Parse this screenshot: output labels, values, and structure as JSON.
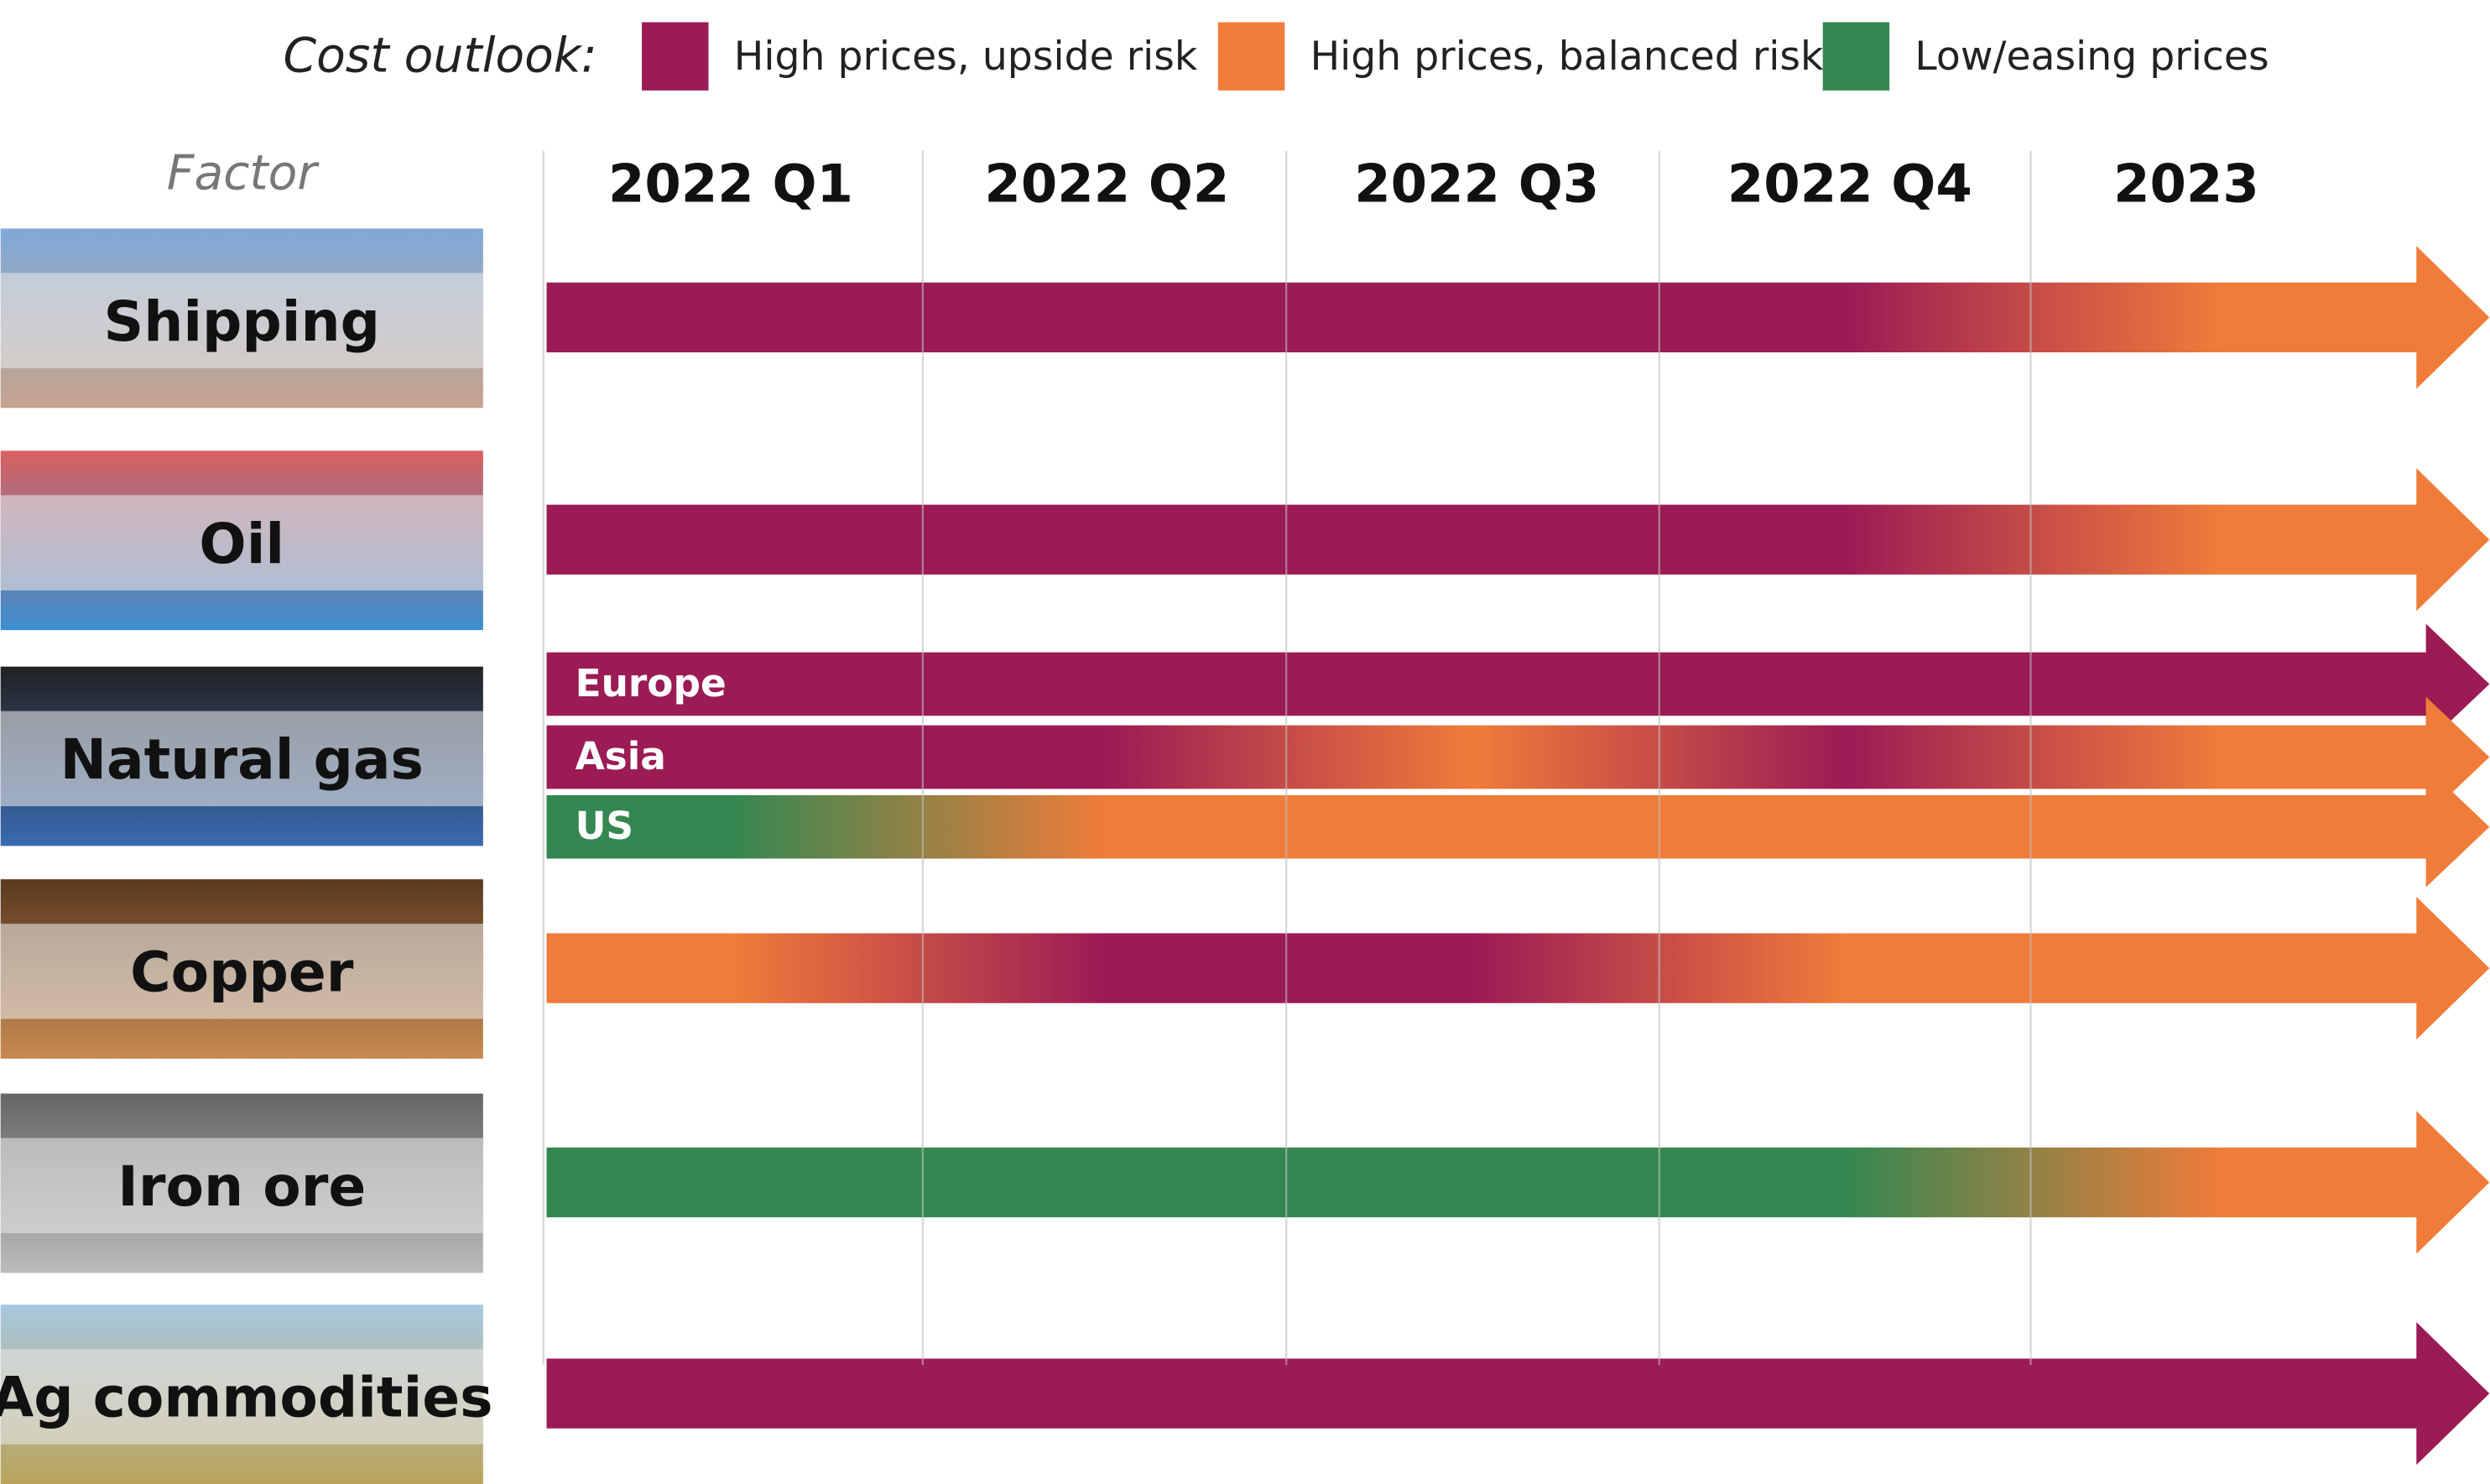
{
  "legend": {
    "title": "Cost outlook:",
    "items": [
      {
        "label": "High prices, upside risk",
        "color": "#9b1b55"
      },
      {
        "label": "High prices, balanced risk",
        "color": "#f07c3a"
      },
      {
        "label": "Low/easing prices",
        "color": "#358751"
      }
    ]
  },
  "header": {
    "factor": "Factor",
    "periods": [
      "2022 Q1",
      "2022 Q2",
      "2022 Q3",
      "2022 Q4",
      "2023"
    ]
  },
  "rows": [
    {
      "label": "Shipping",
      "bars": [
        {
          "outlook": [
            0,
            0,
            0,
            0,
            1
          ]
        }
      ]
    },
    {
      "label": "Oil",
      "bars": [
        {
          "outlook": [
            0,
            0,
            0,
            0,
            1
          ]
        }
      ]
    },
    {
      "label": "Natural gas",
      "bars": [
        {
          "label": "Europe",
          "outlook": [
            0,
            0,
            0,
            0,
            0
          ]
        },
        {
          "label": "Asia",
          "outlook": [
            0,
            0,
            1,
            0,
            1
          ]
        },
        {
          "label": "US",
          "outlook": [
            2,
            1,
            1,
            1,
            1
          ]
        }
      ]
    },
    {
      "label": "Copper",
      "bars": [
        {
          "outlook": [
            1,
            0,
            0,
            1,
            1
          ]
        }
      ]
    },
    {
      "label": "Iron ore",
      "bars": [
        {
          "outlook": [
            2,
            2,
            2,
            2,
            1
          ]
        }
      ]
    },
    {
      "label": "Ag commodities",
      "bars": [
        {
          "outlook": [
            0,
            0,
            0,
            0,
            0
          ]
        }
      ]
    }
  ]
}
